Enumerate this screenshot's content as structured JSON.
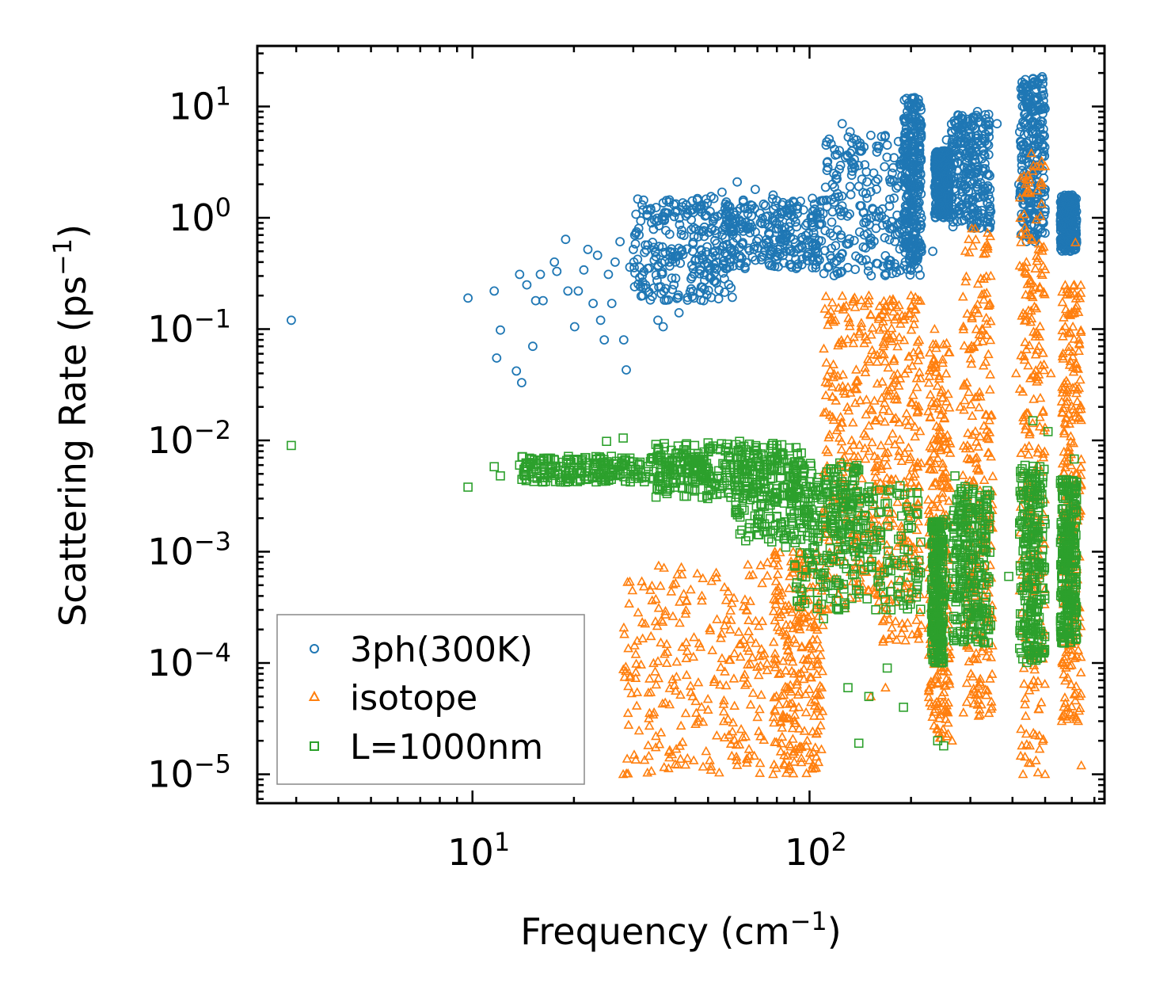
{
  "chart_data": {
    "type": "scatter",
    "title": "",
    "xlabel": "Frequency (cm",
    "xlabel_unit_exp": "−1",
    "ylabel": "Scattering Rate (ps",
    "ylabel_unit_exp": "−1",
    "xscale": "log",
    "yscale": "log",
    "xlim": [
      2.3,
      750
    ],
    "ylim": [
      5.5e-06,
      35
    ],
    "grid": false,
    "legend_position": "lower-left",
    "x_ticks": [
      {
        "value": 10,
        "base": "10",
        "exp": "1"
      },
      {
        "value": 100,
        "base": "10",
        "exp": "2"
      }
    ],
    "y_ticks": [
      {
        "value": 10,
        "base": "10",
        "exp": "1"
      },
      {
        "value": 1,
        "base": "10",
        "exp": "0"
      },
      {
        "value": 0.1,
        "base": "10",
        "exp": "−1"
      },
      {
        "value": 0.01,
        "base": "10",
        "exp": "−2"
      },
      {
        "value": 0.001,
        "base": "10",
        "exp": "−3"
      },
      {
        "value": 0.0001,
        "base": "10",
        "exp": "−4"
      },
      {
        "value": 1e-05,
        "base": "10",
        "exp": "−5"
      }
    ],
    "series": [
      {
        "name": "3ph(300K)",
        "marker": "circle",
        "color": "#1f77b4",
        "points": [
          [
            2.9,
            0.12
          ],
          [
            9.7,
            0.19
          ],
          [
            11.6,
            0.22
          ],
          [
            11.8,
            0.055
          ],
          [
            12.1,
            0.098
          ],
          [
            13.5,
            0.042
          ],
          [
            13.8,
            0.31
          ],
          [
            14.0,
            0.033
          ],
          [
            14.5,
            0.25
          ],
          [
            15.1,
            0.07
          ],
          [
            15.4,
            0.18
          ],
          [
            15.9,
            0.31
          ],
          [
            16.2,
            0.18
          ],
          [
            17.5,
            0.4
          ],
          [
            17.8,
            0.33
          ],
          [
            18.9,
            0.64
          ],
          [
            19.2,
            0.22
          ],
          [
            20.1,
            0.105
          ],
          [
            20.6,
            0.22
          ],
          [
            21.4,
            0.34
          ],
          [
            22.0,
            0.52
          ],
          [
            22.8,
            0.17
          ],
          [
            23.5,
            0.46
          ],
          [
            24.0,
            0.12
          ],
          [
            24.6,
            0.08
          ],
          [
            25.3,
            0.31
          ],
          [
            25.9,
            0.17
          ],
          [
            26.5,
            0.4
          ],
          [
            27.4,
            0.61
          ],
          [
            28.1,
            0.08
          ],
          [
            28.6,
            0.043
          ],
          [
            29.3,
            0.36
          ],
          [
            30.0,
            0.52
          ],
          [
            31.2,
            0.7
          ],
          [
            32.0,
            0.2
          ],
          [
            33.1,
            0.35
          ],
          [
            34.0,
            0.9
          ],
          [
            35.5,
            0.12
          ],
          [
            36.8,
            0.105
          ],
          [
            38.0,
            1.1
          ],
          [
            39.6,
            0.25
          ],
          [
            41.0,
            0.14
          ],
          [
            43.0,
            1.3
          ],
          [
            45.0,
            0.5
          ],
          [
            47.0,
            1.2
          ],
          [
            48.5,
            0.18
          ],
          [
            51.0,
            1.55
          ],
          [
            53.0,
            0.4
          ],
          [
            55.0,
            1.7
          ],
          [
            58.0,
            0.9
          ],
          [
            61.0,
            2.1
          ],
          [
            65.0,
            0.8
          ],
          [
            69.0,
            1.8
          ],
          [
            72.0,
            0.42
          ],
          [
            78.0,
            1.6
          ],
          [
            85.0,
            0.5
          ],
          [
            92.0,
            1.2
          ],
          [
            98.0,
            0.45
          ],
          [
            112.0,
            4.5
          ],
          [
            118.0,
            2.5
          ],
          [
            125.0,
            7.0
          ],
          [
            132.0,
            3.8
          ],
          [
            138.0,
            5.0
          ],
          [
            145.0,
            0.9
          ],
          [
            152.0,
            5.5
          ],
          [
            160.0,
            4.2
          ],
          [
            170.0,
            4.5
          ],
          [
            178.0,
            1.5
          ],
          [
            187.0,
            3.0
          ],
          [
            195.0,
            9.0
          ],
          [
            205.0,
            12.0
          ],
          [
            210.0,
            0.35
          ],
          [
            232.0,
            0.5
          ],
          [
            245.0,
            3.5
          ],
          [
            255.0,
            5.0
          ],
          [
            268.0,
            3.0
          ],
          [
            290.0,
            5.5
          ],
          [
            305.0,
            8.0
          ],
          [
            315.0,
            9.0
          ],
          [
            328.0,
            4.0
          ],
          [
            340.0,
            8.5
          ],
          [
            360.0,
            7.0
          ],
          [
            418.0,
            2.0
          ],
          [
            430.0,
            13.0
          ],
          [
            445.0,
            15.0
          ],
          [
            462.0,
            9.0
          ],
          [
            475.0,
            16.0
          ],
          [
            490.0,
            18.5
          ],
          [
            500.0,
            1.8
          ],
          [
            560.0,
            1.4
          ],
          [
            585.0,
            0.85
          ],
          [
            620.0,
            0.6
          ]
        ],
        "bands": [
          {
            "x": [
              30,
              60
            ],
            "y": [
              0.18,
              1.5
            ]
          },
          {
            "x": [
              55,
              110
            ],
            "y": [
              0.35,
              1.5
            ]
          },
          {
            "x": [
              110,
              215
            ],
            "y": [
              0.3,
              6.0
            ]
          },
          {
            "x": [
              190,
              215
            ],
            "y": [
              0.4,
              12.0
            ]
          },
          {
            "x": [
              235,
              260
            ],
            "y": [
              1.0,
              4.0
            ]
          },
          {
            "x": [
              262,
              345
            ],
            "y": [
              0.8,
              8.5
            ]
          },
          {
            "x": [
              420,
              500
            ],
            "y": [
              0.6,
              18.0
            ]
          },
          {
            "x": [
              555,
              620
            ],
            "y": [
              0.5,
              1.6
            ]
          }
        ]
      },
      {
        "name": "isotope",
        "marker": "triangle",
        "color": "#ff7f0e",
        "points": [
          [
            28.0,
            1e-05
          ],
          [
            35.0,
            2.2e-05
          ],
          [
            45.0,
            5e-05
          ],
          [
            55.0,
            0.00011
          ],
          [
            65.0,
            0.0003
          ],
          [
            75.0,
            0.0008
          ],
          [
            78.0,
            1e-05
          ],
          [
            82.0,
            3e-05
          ],
          [
            90.0,
            8e-05
          ],
          [
            96.0,
            0.00025
          ],
          [
            105.0,
            0.001
          ],
          [
            118.0,
            0.004
          ],
          [
            130.0,
            0.03
          ],
          [
            150.0,
            0.2
          ],
          [
            175.0,
            0.03
          ],
          [
            200.0,
            0.2
          ],
          [
            235.0,
            0.1
          ],
          [
            280.0,
            0.02
          ],
          [
            310.0,
            0.8
          ],
          [
            345.0,
            0.3
          ],
          [
            410.0,
            0.04
          ],
          [
            455.0,
            3.8
          ],
          [
            520.0,
            0.04
          ],
          [
            610.0,
            0.25
          ],
          [
            615.0,
            0.6
          ],
          [
            640.0,
            1.2e-05
          ],
          [
            152.0,
            5e-05
          ],
          [
            168.0,
            6e-05
          ],
          [
            240.0,
            6.5e-05
          ],
          [
            265.0,
            2e-05
          ],
          [
            430.0,
            1e-05
          ],
          [
            500.0,
            1e-05
          ],
          [
            560.0,
            3e-05
          ]
        ],
        "bands": [
          {
            "x": [
              28,
              75
            ],
            "y": [
              1e-05,
              0.0008
            ]
          },
          {
            "x": [
              78,
              110
            ],
            "y": [
              1e-05,
              0.001
            ]
          },
          {
            "x": [
              110,
              160
            ],
            "y": [
              0.0003,
              0.2
            ]
          },
          {
            "x": [
              160,
              215
            ],
            "y": [
              0.00015,
              0.2
            ]
          },
          {
            "x": [
              225,
              262
            ],
            "y": [
              2e-05,
              0.08
            ]
          },
          {
            "x": [
              285,
              350
            ],
            "y": [
              3e-05,
              0.8
            ]
          },
          {
            "x": [
              420,
              500
            ],
            "y": [
              1e-05,
              3.5
            ]
          },
          {
            "x": [
              560,
              640
            ],
            "y": [
              3e-05,
              0.25
            ]
          }
        ]
      },
      {
        "name": "L=1000nm",
        "marker": "square",
        "color": "#2ca02c",
        "points": [
          [
            2.9,
            0.009
          ],
          [
            9.7,
            0.0038
          ],
          [
            11.6,
            0.0058
          ],
          [
            12.1,
            0.0048
          ],
          [
            13.8,
            0.006
          ],
          [
            14.5,
            0.0045
          ],
          [
            15.5,
            0.0062
          ],
          [
            17.0,
            0.0055
          ],
          [
            19.0,
            0.0048
          ],
          [
            21.0,
            0.0052
          ],
          [
            25.0,
            0.0098
          ],
          [
            28.0,
            0.0105
          ],
          [
            35.0,
            0.0092
          ],
          [
            50.0,
            0.0095
          ],
          [
            62.0,
            0.0098
          ],
          [
            75.0,
            0.0015
          ],
          [
            85.0,
            0.0011
          ],
          [
            95.0,
            0.0006
          ],
          [
            110.0,
            0.00025
          ],
          [
            130.0,
            6e-05
          ],
          [
            140.0,
            1.9e-05
          ],
          [
            150.0,
            5e-05
          ],
          [
            170.0,
            9e-05
          ],
          [
            190.0,
            4e-05
          ],
          [
            240.0,
            2e-05
          ],
          [
            250.0,
            1.8e-05
          ],
          [
            270.0,
            0.0048
          ],
          [
            390.0,
            0.0006
          ],
          [
            460.0,
            0.015
          ],
          [
            510.0,
            0.012
          ],
          [
            610.0,
            0.0068
          ],
          [
            620.0,
            0.0042
          ]
        ],
        "bands": [
          {
            "x": [
              14,
              50
            ],
            "y": [
              0.0042,
              0.0072
            ]
          },
          {
            "x": [
              35,
              95
            ],
            "y": [
              0.003,
              0.0095
            ]
          },
          {
            "x": [
              60,
              140
            ],
            "y": [
              0.0012,
              0.007
            ]
          },
          {
            "x": [
              90,
              215
            ],
            "y": [
              0.0003,
              0.004
            ]
          },
          {
            "x": [
              230,
              250
            ],
            "y": [
              0.0001,
              0.002
            ]
          },
          {
            "x": [
              265,
              345
            ],
            "y": [
              0.00015,
              0.004
            ]
          },
          {
            "x": [
              420,
              500
            ],
            "y": [
              0.0001,
              0.006
            ]
          },
          {
            "x": [
              555,
              620
            ],
            "y": [
              0.00015,
              0.0045
            ]
          }
        ]
      }
    ]
  }
}
